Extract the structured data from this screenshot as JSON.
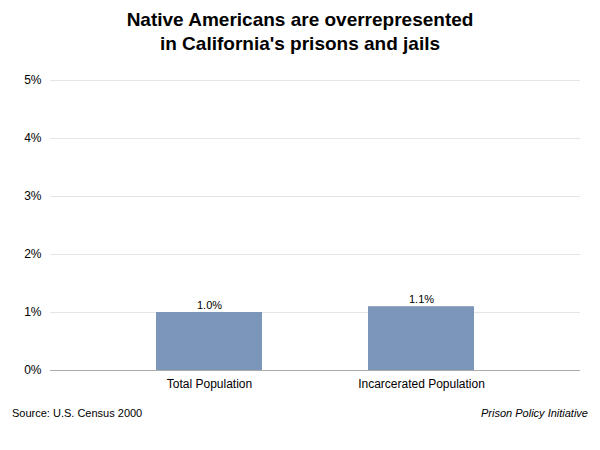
{
  "chart_data": {
    "type": "bar",
    "title": "Native Americans are overrepresented\nin California's prisons and jails",
    "categories": [
      "Total Population",
      "Incarcerated Population"
    ],
    "values": [
      1.0,
      1.1
    ],
    "value_labels": [
      "1.0%",
      "1.1%"
    ],
    "data_labels": true,
    "color": "#7b96b8",
    "ylim": [
      0,
      5
    ],
    "yticks": [
      {
        "value": 0,
        "label": "0%"
      },
      {
        "value": 1,
        "label": "1%"
      },
      {
        "value": 2,
        "label": "2%"
      },
      {
        "value": 3,
        "label": "3%"
      },
      {
        "value": 4,
        "label": "4%"
      },
      {
        "value": 5,
        "label": "5%"
      }
    ],
    "grid": true,
    "annotations": [
      "Source: U.S. Census 2000",
      "Prison Policy Initiative"
    ]
  }
}
